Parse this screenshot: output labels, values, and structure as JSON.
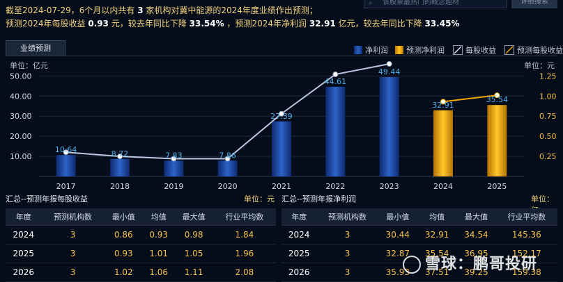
{
  "header": {
    "line1": {
      "prefix": "截至2024-07-29，6个月以内共有",
      "count": "3",
      "suffix": "家机构对冀中能源的2024年度业绩作出预测；"
    },
    "line2": {
      "t1": "预测2024年每股收益",
      "eps": "0.93",
      "t2": "元，较去年同比下降",
      "eps_pct": "33.54%",
      "t3": "，预测2024年净利润",
      "profit": "32.91",
      "t4": "亿元，较去年同比下降",
      "profit_pct": "33.45%"
    }
  },
  "search": {
    "placeholder": "该股票最热门的概念题材",
    "button": "详细搜索"
  },
  "tab": {
    "label": "业绩预测"
  },
  "legend": {
    "items": [
      {
        "label": "净利润",
        "color": "#1d4a9e"
      },
      {
        "label": "预测净利润",
        "color": "#f0a500"
      },
      {
        "label": "每股收益",
        "color": "#b8c7de"
      },
      {
        "label": "预测每股收益",
        "color": "#f0a500"
      }
    ]
  },
  "axes": {
    "left_unit": "单位：亿元",
    "right_unit": "单位：元"
  },
  "chart_data": {
    "type": "bar",
    "categories": [
      "2017",
      "2018",
      "2019",
      "2020",
      "2021",
      "2022",
      "2023",
      "2024",
      "2025"
    ],
    "series": [
      {
        "name": "净利润",
        "values": [
          10.64,
          8.72,
          7.83,
          7.86,
          27.39,
          44.61,
          49.44,
          null,
          null
        ]
      },
      {
        "name": "预测净利润",
        "values": [
          null,
          null,
          null,
          null,
          null,
          null,
          null,
          32.91,
          35.54
        ]
      },
      {
        "name": "每股收益",
        "values": [
          0.3,
          0.25,
          0.22,
          0.22,
          0.78,
          1.27,
          1.4,
          null,
          null
        ]
      },
      {
        "name": "预测每股收益",
        "values": [
          null,
          null,
          null,
          null,
          null,
          null,
          null,
          0.93,
          1.01
        ]
      }
    ],
    "data_labels": [
      "10.64",
      "8.72",
      "7.83",
      "7.86",
      "27.39",
      "44.61",
      "49.44",
      "32.91",
      "35.54"
    ],
    "left_ticks": [
      "50.00",
      "40.00",
      "30.00",
      "20.00",
      "10.00"
    ],
    "right_ticks": [
      "1.25",
      "1.00",
      "0.75",
      "0.50",
      "0.25"
    ],
    "ylim_left": [
      0,
      56
    ],
    "ylim_right": [
      0,
      1.4
    ]
  },
  "eps_table": {
    "title": "汇总--预测年报每股收益",
    "unit": "单位：元",
    "headers": [
      "年度",
      "预测机构数",
      "最小值",
      "均值",
      "最大值",
      "行业平均数"
    ],
    "rows": [
      [
        "2024",
        "3",
        "0.86",
        "0.93",
        "0.98",
        "1.84"
      ],
      [
        "2025",
        "3",
        "0.93",
        "1.01",
        "1.05",
        "1.96"
      ],
      [
        "2026",
        "3",
        "1.02",
        "1.06",
        "1.11",
        "2.08"
      ]
    ]
  },
  "profit_table": {
    "title": "汇总--预测年报净利润",
    "unit": "单位：亿",
    "headers": [
      "年度",
      "预测机构数",
      "最小值",
      "均值",
      "最大值",
      "行业平均数"
    ],
    "rows": [
      [
        "2024",
        "3",
        "30.44",
        "32.91",
        "34.54",
        "145.36"
      ],
      [
        "2025",
        "3",
        "32.87",
        "35.54",
        "36.95",
        "152.17"
      ],
      [
        "2026",
        "3",
        "35.93",
        "37.51",
        "39.25",
        "159.38"
      ]
    ]
  },
  "watermark": {
    "text": "雪球：鹏哥投研"
  }
}
